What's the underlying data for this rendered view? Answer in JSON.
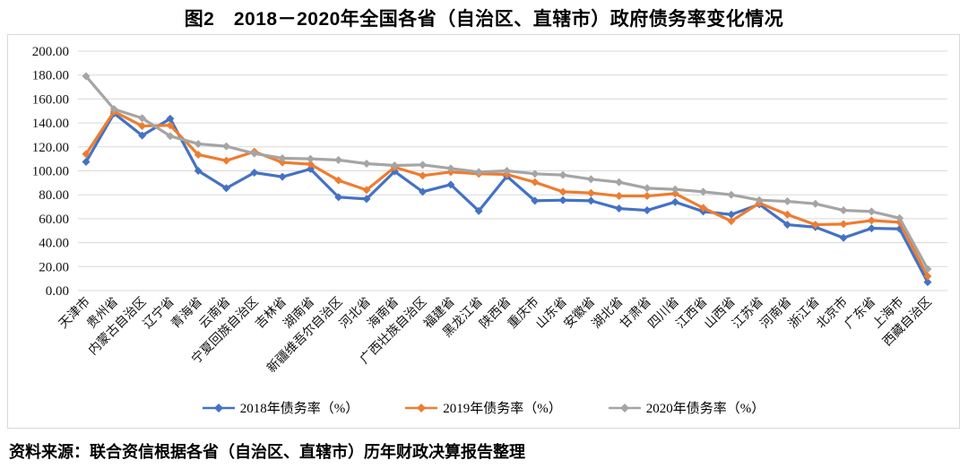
{
  "title": "图2　2018－2020年全国各省（自治区、直辖市）政府债务率变化情况",
  "source_note": "资料来源：联合资信根据各省（自治区、直辖市）历年财政决算报告整理",
  "colors": {
    "series_2018": "#4472C4",
    "series_2019": "#ED7D31",
    "series_2020": "#A5A5A5",
    "gridline": "#D9D9D9",
    "chart_border": "#D8D8D8",
    "label_text": "#111111"
  },
  "y_ticks": [
    "0.00",
    "20.00",
    "40.00",
    "60.00",
    "80.00",
    "100.00",
    "120.00",
    "140.00",
    "160.00",
    "180.00",
    "200.00"
  ],
  "chart_data": {
    "type": "line",
    "title": "图2　2018－2020年全国各省（自治区、直辖市）政府债务率变化情况",
    "xlabel": "",
    "ylabel": "",
    "ylim": [
      0,
      200
    ],
    "y_tick_step": 20,
    "grid": true,
    "marker": "diamond",
    "legend_position": "bottom",
    "categories": [
      "天津市",
      "贵州省",
      "内蒙古自治区",
      "辽宁省",
      "青海省",
      "云南省",
      "宁夏回族自治区",
      "吉林省",
      "湖南省",
      "新疆维吾尔自治区",
      "河北省",
      "海南省",
      "广西壮族自治区",
      "福建省",
      "黑龙江省",
      "陕西省",
      "重庆市",
      "山东省",
      "安徽省",
      "湖北省",
      "甘肃省",
      "四川省",
      "江西省",
      "山西省",
      "江苏省",
      "河南省",
      "浙江省",
      "北京市",
      "广东省",
      "上海市",
      "西藏自治区"
    ],
    "series": [
      {
        "name": "2018年债务率（%）",
        "color_key": "series_2018",
        "values": [
          107.5,
          148,
          129.5,
          143.5,
          100,
          85.5,
          98.5,
          95,
          101.5,
          78,
          76.5,
          99.5,
          82.5,
          88.5,
          66.5,
          95.5,
          75,
          75.5,
          75,
          68.5,
          67,
          74,
          66,
          63.5,
          72,
          55,
          53,
          44,
          52,
          51.5,
          7
        ]
      },
      {
        "name": "2019年债务率（%）",
        "color_key": "series_2019",
        "values": [
          114,
          149.5,
          137.5,
          138,
          113.5,
          108.5,
          116,
          107,
          105.5,
          92,
          84,
          103,
          96,
          99,
          97.5,
          97,
          90.5,
          82.5,
          81.5,
          79,
          79,
          81,
          69,
          58,
          73,
          63.5,
          55,
          55.5,
          58.5,
          57,
          12
        ]
      },
      {
        "name": "2020年债务率（%）",
        "color_key": "series_2020",
        "values": [
          179,
          151.5,
          144,
          129,
          122.5,
          120.5,
          114.5,
          110.5,
          110,
          109,
          106,
          104.5,
          105,
          102,
          99,
          100,
          97.5,
          96.5,
          93,
          90.5,
          85.5,
          84.5,
          82.5,
          80,
          75.5,
          74.5,
          72.5,
          67,
          66,
          60.5,
          18
        ]
      }
    ]
  }
}
